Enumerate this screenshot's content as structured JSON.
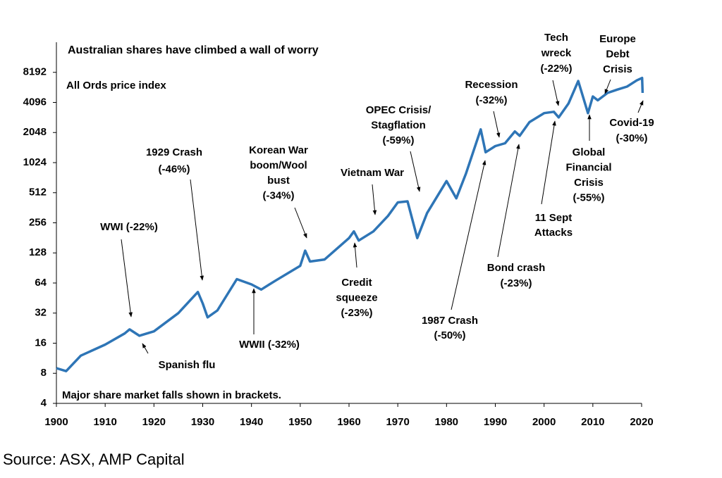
{
  "chart_data": {
    "type": "line",
    "title": "Australian shares have climbed a wall of worry",
    "subtitle": "All Ords price index",
    "note": "Major share market falls shown in brackets.",
    "source": "Source: ASX, AMP Capital",
    "x": [
      1900,
      1902,
      1905,
      1910,
      1914,
      1915,
      1917,
      1920,
      1925,
      1929,
      1930,
      1931,
      1933,
      1937,
      1940,
      1942,
      1945,
      1950,
      1951,
      1952,
      1955,
      1960,
      1961,
      1962,
      1965,
      1968,
      1970,
      1972,
      1974,
      1976,
      1980,
      1982,
      1984,
      1987,
      1988,
      1990,
      1992,
      1994,
      1995,
      1997,
      2000,
      2002,
      2003,
      2005,
      2007,
      2009,
      2010,
      2011,
      2013,
      2015,
      2017,
      2019,
      2020.1,
      2020.2
    ],
    "values": [
      9,
      8.4,
      12,
      15.5,
      20,
      22,
      19,
      21,
      32,
      52,
      40,
      29,
      34,
      70,
      62,
      55,
      68,
      95,
      135,
      105,
      110,
      180,
      210,
      170,
      210,
      300,
      410,
      420,
      180,
      320,
      670,
      450,
      800,
      2200,
      1300,
      1500,
      1600,
      2100,
      1900,
      2600,
      3200,
      3300,
      2900,
      4000,
      6700,
      3200,
      4700,
      4300,
      5100,
      5500,
      5900,
      6800,
      7200,
      5100
    ],
    "color": "#2e75b6",
    "log_scale": true,
    "xlim": [
      1900,
      2020
    ],
    "xticks": [
      1900,
      1910,
      1920,
      1930,
      1940,
      1950,
      1960,
      1970,
      1980,
      1990,
      2000,
      2010,
      2020
    ],
    "ylim": [
      4,
      16384
    ],
    "yticks": [
      4,
      8,
      16,
      32,
      64,
      128,
      256,
      512,
      1024,
      2048,
      4096,
      8192
    ],
    "annotations": [
      [
        "WWI (-22%)"
      ],
      [
        "1929 Crash",
        "(-46%)"
      ],
      [
        "Korean War",
        "boom/Wool",
        "bust",
        "(-34%)"
      ],
      [
        "Vietnam War"
      ],
      [
        "OPEC Crisis/",
        "Stagflation",
        "(-59%)"
      ],
      [
        "Credit",
        "squeeze",
        "(-23%)"
      ],
      [
        "Recession",
        "(-32%)"
      ],
      [
        "Tech",
        "wreck",
        "(-22%)"
      ],
      [
        "Europe",
        "Debt",
        "Crisis"
      ],
      [
        "Covid-19",
        "(-30%)"
      ],
      [
        "Global",
        "Financial",
        "Crisis",
        "(-55%)"
      ],
      [
        "11 Sept",
        "Attacks"
      ],
      [
        "Bond crash",
        "(-23%)"
      ],
      [
        "1987 Crash",
        "(-50%)"
      ],
      [
        "WWII  (-32%)"
      ],
      [
        "Spanish flu"
      ]
    ]
  }
}
